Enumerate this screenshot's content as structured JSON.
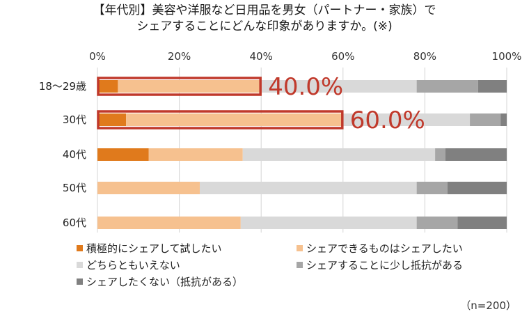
{
  "title": {
    "line1": "【年代別】美容や洋服など日用品を男女（パートナー・家族）で",
    "line2": "シェアすることにどんな印象がありますか。(※)"
  },
  "chart_data": {
    "type": "bar",
    "orientation": "horizontal",
    "stacked": true,
    "categories": [
      "18〜29歳",
      "30代",
      "40代",
      "50代",
      "60代"
    ],
    "x_ticks": [
      "0%",
      "20%",
      "40%",
      "60%",
      "80%",
      "100%"
    ],
    "xlim": [
      0,
      100
    ],
    "grid": true,
    "series": [
      {
        "name": "積極的にシェアして試したい",
        "color": "#E07A1C",
        "values": [
          5,
          7,
          12.5,
          0,
          0
        ]
      },
      {
        "name": "シェアできるものはシェアしたい",
        "color": "#F6C18F",
        "values": [
          35,
          53,
          23,
          25,
          35
        ]
      },
      {
        "name": "どちらともいえない",
        "color": "#D9D9D9",
        "values": [
          38,
          31,
          47,
          53,
          43
        ]
      },
      {
        "name": "シェアすることに少し抵抗がある",
        "color": "#A6A6A6",
        "values": [
          15,
          7.5,
          2.5,
          7.5,
          10
        ]
      },
      {
        "name": "シェアしたくない（抵抗がある）",
        "color": "#808080",
        "values": [
          7,
          1.5,
          15,
          14.5,
          12
        ]
      }
    ],
    "highlights": [
      {
        "category": "18〜29歳",
        "value": 40,
        "label": "40.0%"
      },
      {
        "category": "30代",
        "value": 60,
        "label": "60.0%"
      }
    ],
    "highlight_color": "#C0392B",
    "legend_position": "bottom",
    "sample_size": "（n=200）"
  }
}
